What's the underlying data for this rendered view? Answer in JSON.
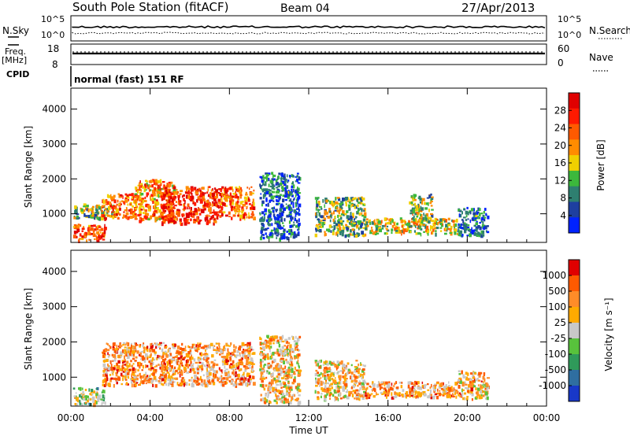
{
  "header": {
    "station": "South Pole Station (fitACF)",
    "beam": "Beam 04",
    "date": "27/Apr/2013"
  },
  "top_panels": {
    "nsky_label": "N.Sky",
    "nsky_ticks": [
      "10^5",
      "10^0"
    ],
    "nsearch_label": "N.Search",
    "nsearch_ticks": [
      "10^5",
      "10^0"
    ],
    "freq_label": "Freq.",
    "freq_unit": "[MHz]",
    "freq_ticks": [
      "18",
      "8"
    ],
    "nave_label": "Nave",
    "nave_ticks": [
      "60",
      "0"
    ],
    "cpid_label": "CPID",
    "cpid_text": "normal (fast) 151 RF"
  },
  "chart_data": [
    {
      "type": "heatmap",
      "name": "power",
      "ylabel": "Slant Range [km]",
      "yticks": [
        "4000",
        "3000",
        "2000",
        "1000"
      ],
      "ylim": [
        180,
        4600
      ],
      "xlim": [
        0,
        24
      ],
      "colorbar_label": "Power [dB]",
      "colorbar_ticks": [
        "28",
        "24",
        "20",
        "16",
        "12",
        "8",
        "4"
      ],
      "colors": [
        "#0022ff",
        "#1e3fa0",
        "#2e7f70",
        "#3cb83c",
        "#f0d000",
        "#ff8c00",
        "#ff5a00",
        "#ff1a00",
        "#e00000"
      ],
      "regions": [
        {
          "x0": 0.1,
          "x1": 1.7,
          "y0": 260,
          "y1": 720,
          "level": 0.75
        },
        {
          "x0": 0.1,
          "x1": 2.2,
          "y0": 900,
          "y1": 1300,
          "level": 0.4
        },
        {
          "x0": 1.5,
          "x1": 3.2,
          "y0": 900,
          "y1": 1600,
          "level": 0.7
        },
        {
          "x0": 3.2,
          "x1": 5.2,
          "y0": 800,
          "y1": 2000,
          "level": 0.65
        },
        {
          "x0": 4.5,
          "x1": 7.5,
          "y0": 750,
          "y1": 1800,
          "level": 0.85
        },
        {
          "x0": 7.5,
          "x1": 9.2,
          "y0": 900,
          "y1": 1800,
          "level": 0.7
        },
        {
          "x0": 9.5,
          "x1": 11.5,
          "y0": 300,
          "y1": 2200,
          "level": 0.2
        },
        {
          "x0": 12.3,
          "x1": 14.8,
          "y0": 400,
          "y1": 1500,
          "level": 0.4
        },
        {
          "x0": 14.8,
          "x1": 19.5,
          "y0": 450,
          "y1": 900,
          "level": 0.5
        },
        {
          "x0": 17.0,
          "x1": 18.2,
          "y0": 800,
          "y1": 1600,
          "level": 0.45
        },
        {
          "x0": 19.5,
          "x1": 21.0,
          "y0": 400,
          "y1": 1200,
          "level": 0.2
        }
      ]
    },
    {
      "type": "heatmap",
      "name": "velocity",
      "ylabel": "Slant Range [km]",
      "yticks": [
        "4000",
        "3000",
        "2000",
        "1000"
      ],
      "ylim": [
        180,
        4600
      ],
      "xlim": [
        0,
        24
      ],
      "xticks": [
        "00:00",
        "04:00",
        "08:00",
        "12:00",
        "16:00",
        "20:00",
        "00:00"
      ],
      "xlabel": "Time UT",
      "colorbar_label": "Velocity [m s⁻¹]",
      "colorbar_ticks": [
        "1000",
        "500",
        "100",
        "25",
        "-25",
        "-100",
        "-500",
        "-1000"
      ],
      "colors": [
        "#1838c8",
        "#2f6ea0",
        "#2f9a5a",
        "#58c23c",
        "#c8c8c8",
        "#ffaa00",
        "#ff8c28",
        "#ff5a00",
        "#e00000"
      ],
      "regions": [
        {
          "x0": 0.1,
          "x1": 1.7,
          "y0": 260,
          "y1": 720,
          "level": 0.45
        },
        {
          "x0": 1.5,
          "x1": 9.2,
          "y0": 800,
          "y1": 2000,
          "level": 0.7
        },
        {
          "x0": 9.5,
          "x1": 11.5,
          "y0": 300,
          "y1": 2200,
          "level": 0.6
        },
        {
          "x0": 12.3,
          "x1": 14.8,
          "y0": 400,
          "y1": 1500,
          "level": 0.6
        },
        {
          "x0": 14.8,
          "x1": 19.5,
          "y0": 450,
          "y1": 900,
          "level": 0.7
        },
        {
          "x0": 19.5,
          "x1": 21.0,
          "y0": 400,
          "y1": 1200,
          "level": 0.65
        }
      ]
    }
  ]
}
